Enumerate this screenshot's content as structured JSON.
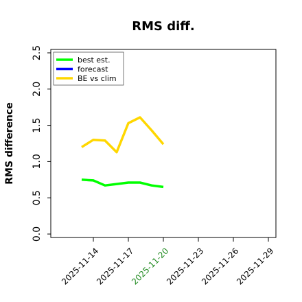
{
  "chart_data": {
    "type": "line",
    "title": "RMS diff.",
    "xlabel": "",
    "ylabel": "RMS difference",
    "ylim": [
      0,
      2.5
    ],
    "yticks": [
      "0.0",
      "0.5",
      "1.0",
      "1.5",
      "2.0",
      "2.5"
    ],
    "x_ticks": [
      {
        "label": "2025-11-14",
        "color": "#000000"
      },
      {
        "label": "2025-11-17",
        "color": "#000000"
      },
      {
        "label": "2025-11-20",
        "color": "#228B22"
      },
      {
        "label": "2025-11-23",
        "color": "#000000"
      },
      {
        "label": "2025-11-26",
        "color": "#000000"
      },
      {
        "label": "2025-11-29",
        "color": "#000000"
      }
    ],
    "x": [
      "2025-11-13",
      "2025-11-14",
      "2025-11-15",
      "2025-11-16",
      "2025-11-17",
      "2025-11-18",
      "2025-11-19",
      "2025-11-20"
    ],
    "legend_position": "top-left",
    "grid": false,
    "series": [
      {
        "name": "best est.",
        "color": "#00ff00",
        "values": [
          0.75,
          0.74,
          0.67,
          0.69,
          0.71,
          0.71,
          0.67,
          0.65
        ]
      },
      {
        "name": "forecast",
        "color": "#0000ff",
        "values": [
          null,
          null,
          null,
          null,
          null,
          null,
          null,
          null
        ]
      },
      {
        "name": "BE vs clim",
        "color": "#ffd700",
        "values": [
          1.2,
          1.3,
          1.29,
          1.13,
          1.53,
          1.61,
          1.43,
          1.24
        ]
      }
    ]
  }
}
